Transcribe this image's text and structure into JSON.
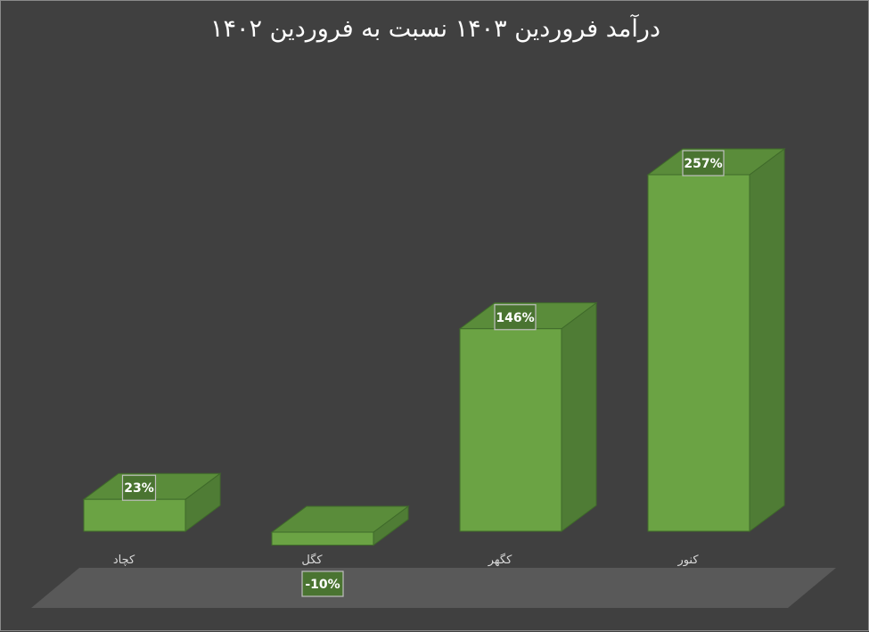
{
  "chart_data": {
    "type": "bar",
    "title": "درآمد فروردین ۱۴۰۳ نسبت به فروردین ۱۴۰۲",
    "categories": [
      "کچاد",
      "کگل",
      "کگهر",
      "کنور"
    ],
    "values": [
      23,
      -10,
      146,
      257
    ],
    "data_labels": [
      "23%",
      "-10%",
      "146%",
      "257%"
    ],
    "unit": "%",
    "style": "3d-column",
    "grid": false,
    "legend": "none",
    "colors": {
      "bar_front": "#6ba344",
      "bar_side": "#4f7c35",
      "bar_top": "#5a8c3a",
      "floor": "#595959",
      "background": "#404040",
      "label_box_fill": "#4a7431",
      "label_box_border": "#bfbfbf"
    }
  }
}
